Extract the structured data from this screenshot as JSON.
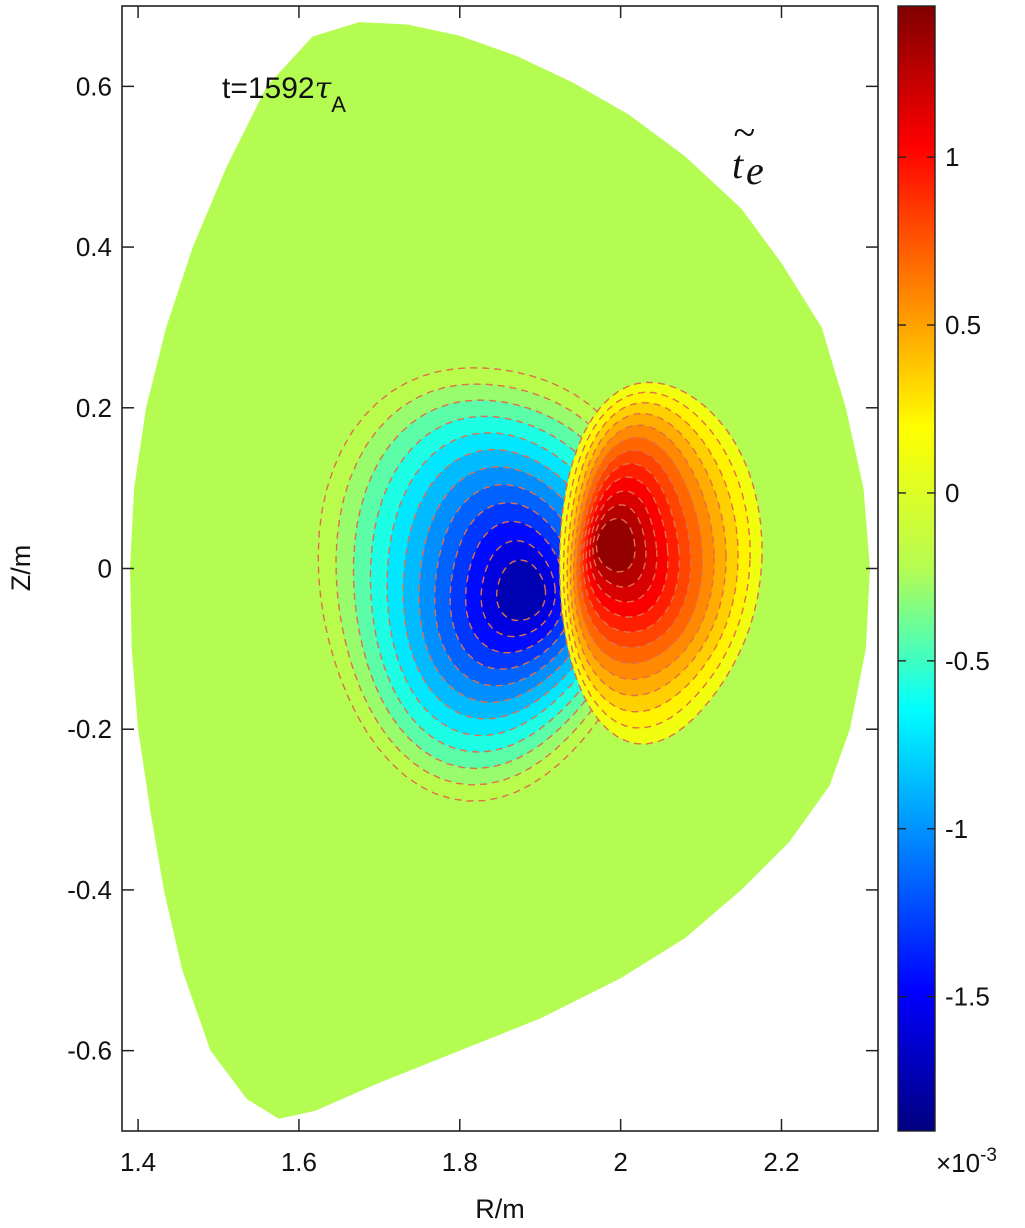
{
  "chart_data": {
    "type": "contour",
    "xlabel": "R/m",
    "ylabel": "Z/m",
    "xlim": [
      1.38,
      2.32
    ],
    "ylim": [
      -0.7,
      0.7
    ],
    "x_ticks": [
      1.4,
      1.6,
      1.8,
      2,
      2.2
    ],
    "x_tick_labels": [
      "1.4",
      "1.6",
      "1.8",
      "2",
      "2.2"
    ],
    "y_ticks": [
      0.6,
      0.4,
      0.2,
      0,
      -0.2,
      -0.4,
      -0.6
    ],
    "y_tick_labels": [
      "0.6",
      "0.4",
      "0.2",
      "0",
      "-0.2",
      "-0.4",
      "-0.6"
    ],
    "annotation_time": {
      "prefix": "t=1592",
      "symbol": "τ",
      "subscript": "A"
    },
    "variable_label": {
      "base": "t",
      "subscript": "e",
      "accent": "~"
    },
    "colorbar": {
      "range": [
        -1.9,
        1.45
      ],
      "ticks": [
        1,
        0.5,
        0,
        -0.5,
        -1,
        -1.5
      ],
      "tick_labels": [
        "1",
        "0.5",
        "0",
        "-0.5",
        "-1",
        "-1.5"
      ],
      "exponent_label": {
        "base": "×10",
        "power": "-3"
      },
      "colormap": "jet"
    },
    "background_level": 0,
    "features": [
      {
        "name": "negative-lobe",
        "center": [
          1.86,
          -0.03
        ],
        "peak": -1.9
      },
      {
        "name": "positive-lobe",
        "center": [
          1.99,
          0.03
        ],
        "peak": 1.45
      }
    ],
    "contour_line_color": "#e0704a",
    "domain_color": "#b5fc52",
    "boundary": [
      [
        1.617,
        0.662
      ],
      [
        1.675,
        0.68
      ],
      [
        1.735,
        0.677
      ],
      [
        1.8,
        0.663
      ],
      [
        1.87,
        0.638
      ],
      [
        1.94,
        0.605
      ],
      [
        2.01,
        0.565
      ],
      [
        2.08,
        0.513
      ],
      [
        2.15,
        0.448
      ],
      [
        2.2,
        0.38
      ],
      [
        2.25,
        0.3
      ],
      [
        2.28,
        0.2
      ],
      [
        2.302,
        0.1
      ],
      [
        2.31,
        0.0
      ],
      [
        2.305,
        -0.1
      ],
      [
        2.285,
        -0.2
      ],
      [
        2.26,
        -0.27
      ],
      [
        2.21,
        -0.34
      ],
      [
        2.15,
        -0.4
      ],
      [
        2.08,
        -0.46
      ],
      [
        2.0,
        -0.51
      ],
      [
        1.9,
        -0.56
      ],
      [
        1.8,
        -0.6
      ],
      [
        1.7,
        -0.64
      ],
      [
        1.62,
        -0.675
      ],
      [
        1.575,
        -0.685
      ],
      [
        1.535,
        -0.66
      ],
      [
        1.49,
        -0.6
      ],
      [
        1.455,
        -0.5
      ],
      [
        1.432,
        -0.4
      ],
      [
        1.415,
        -0.3
      ],
      [
        1.4,
        -0.2
      ],
      [
        1.392,
        -0.1
      ],
      [
        1.39,
        0.0
      ],
      [
        1.395,
        0.1
      ],
      [
        1.41,
        0.2
      ],
      [
        1.435,
        0.3
      ],
      [
        1.468,
        0.4
      ],
      [
        1.51,
        0.5
      ],
      [
        1.56,
        0.6
      ]
    ]
  }
}
